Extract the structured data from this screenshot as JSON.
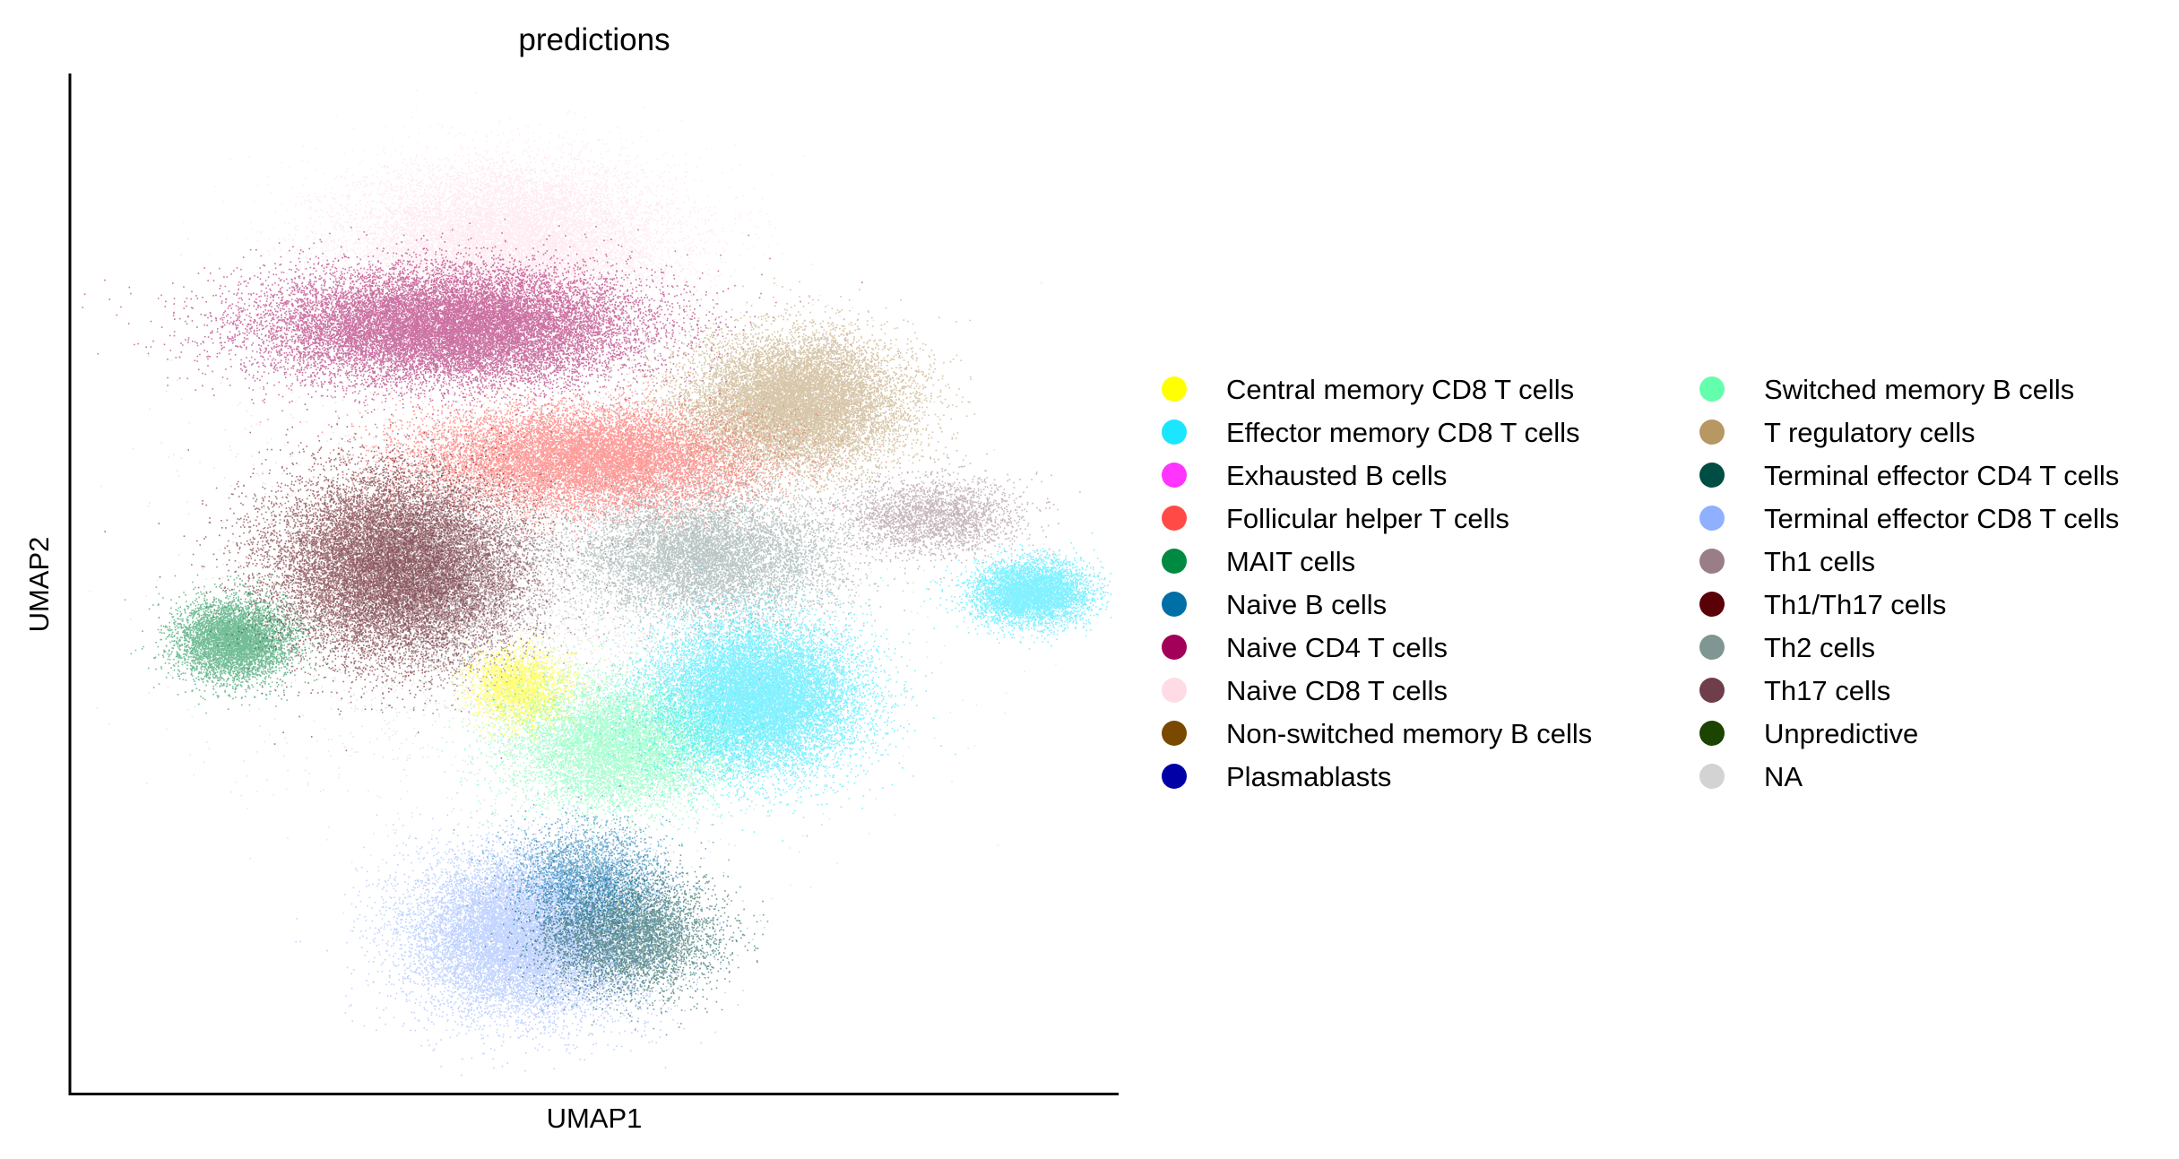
{
  "chart_data": {
    "type": "scatter",
    "title": "predictions",
    "xlabel": "UMAP1",
    "ylabel": "UMAP2",
    "xticks": [],
    "yticks": [],
    "grid": false,
    "legend_placement": "right",
    "legend_columns": 2,
    "series": [
      {
        "name": "Central memory CD8 T cells",
        "color": "#FFFF00"
      },
      {
        "name": "Effector memory CD8 T cells",
        "color": "#1CE6FF"
      },
      {
        "name": "Exhausted B cells",
        "color": "#FF34FF"
      },
      {
        "name": "Follicular helper T cells",
        "color": "#FF4A46"
      },
      {
        "name": "MAIT cells",
        "color": "#008941"
      },
      {
        "name": "Naive B cells",
        "color": "#006FA6"
      },
      {
        "name": "Naive CD4 T cells",
        "color": "#A30059"
      },
      {
        "name": "Naive CD8 T cells",
        "color": "#FFDBE5"
      },
      {
        "name": "Non-switched memory B cells",
        "color": "#7A4900"
      },
      {
        "name": "Plasmablasts",
        "color": "#0000A6"
      },
      {
        "name": "Switched memory B cells",
        "color": "#63FFAC"
      },
      {
        "name": "T regulatory cells",
        "color": "#B79762"
      },
      {
        "name": "Terminal effector CD4 T cells",
        "color": "#004D43"
      },
      {
        "name": "Terminal effector CD8 T cells",
        "color": "#8FB0FF"
      },
      {
        "name": "Th1 cells",
        "color": "#997D87"
      },
      {
        "name": "Th1/Th17 cells",
        "color": "#5A0007"
      },
      {
        "name": "Th2 cells",
        "color": "#809693"
      },
      {
        "name": "Th17 cells",
        "color": "#6F3E4A"
      },
      {
        "name": "Unpredictive",
        "color": "#1B4400"
      },
      {
        "name": "NA",
        "color": "#D3D3D3"
      }
    ],
    "clusters": [
      {
        "series": "Naive CD8 T cells",
        "x": 4.1,
        "y": 8.6,
        "sx": 1.5,
        "sy": 0.75,
        "weight": 5
      },
      {
        "series": "Naive CD4 T cells",
        "x": 3.5,
        "y": 7.7,
        "sx": 1.75,
        "sy": 0.55,
        "weight": 7
      },
      {
        "series": "Follicular helper T cells",
        "x": 4.9,
        "y": 6.3,
        "sx": 1.6,
        "sy": 0.5,
        "weight": 5
      },
      {
        "series": "T regulatory cells",
        "x": 7.0,
        "y": 6.9,
        "sx": 1.0,
        "sy": 0.65,
        "weight": 5
      },
      {
        "series": "Th1 cells",
        "x": 8.4,
        "y": 5.7,
        "sx": 0.8,
        "sy": 0.35,
        "weight": 1
      },
      {
        "series": "Th1/Th17 cells",
        "x": 2.8,
        "y": 5.2,
        "sx": 1.1,
        "sy": 0.9,
        "weight": 5
      },
      {
        "series": "Th17 cells",
        "x": 3.3,
        "y": 5.1,
        "sx": 1.0,
        "sy": 0.8,
        "weight": 3
      },
      {
        "series": "Th2 cells",
        "x": 6.1,
        "y": 5.3,
        "sx": 1.2,
        "sy": 0.6,
        "weight": 3
      },
      {
        "series": "MAIT cells",
        "x": 1.3,
        "y": 4.4,
        "sx": 0.55,
        "sy": 0.4,
        "weight": 2
      },
      {
        "series": "Central memory CD8 T cells",
        "x": 4.2,
        "y": 3.9,
        "sx": 0.45,
        "sy": 0.35,
        "weight": 1
      },
      {
        "series": "Switched memory B cells",
        "x": 5.2,
        "y": 3.3,
        "sx": 1.0,
        "sy": 0.6,
        "weight": 3
      },
      {
        "series": "Effector memory CD8 T cells",
        "x": 6.6,
        "y": 3.8,
        "sx": 0.95,
        "sy": 0.7,
        "weight": 6
      },
      {
        "series": "Effector memory CD8 T cells",
        "x": 9.4,
        "y": 4.9,
        "sx": 0.55,
        "sy": 0.3,
        "weight": 2
      },
      {
        "series": "Terminal effector CD8 T cells",
        "x": 4.3,
        "y": 1.3,
        "sx": 1.1,
        "sy": 0.75,
        "weight": 6
      },
      {
        "series": "Terminal effector CD4 T cells",
        "x": 5.3,
        "y": 1.3,
        "sx": 0.8,
        "sy": 0.55,
        "weight": 2
      },
      {
        "series": "Naive B cells",
        "x": 4.9,
        "y": 1.9,
        "sx": 0.7,
        "sy": 0.5,
        "weight": 1
      },
      {
        "series": "NA",
        "x": 4.6,
        "y": 5.0,
        "sx": 2.8,
        "sy": 2.3,
        "weight": 2
      }
    ],
    "xlim": [
      0,
      10
    ],
    "ylim": [
      0,
      10
    ]
  }
}
